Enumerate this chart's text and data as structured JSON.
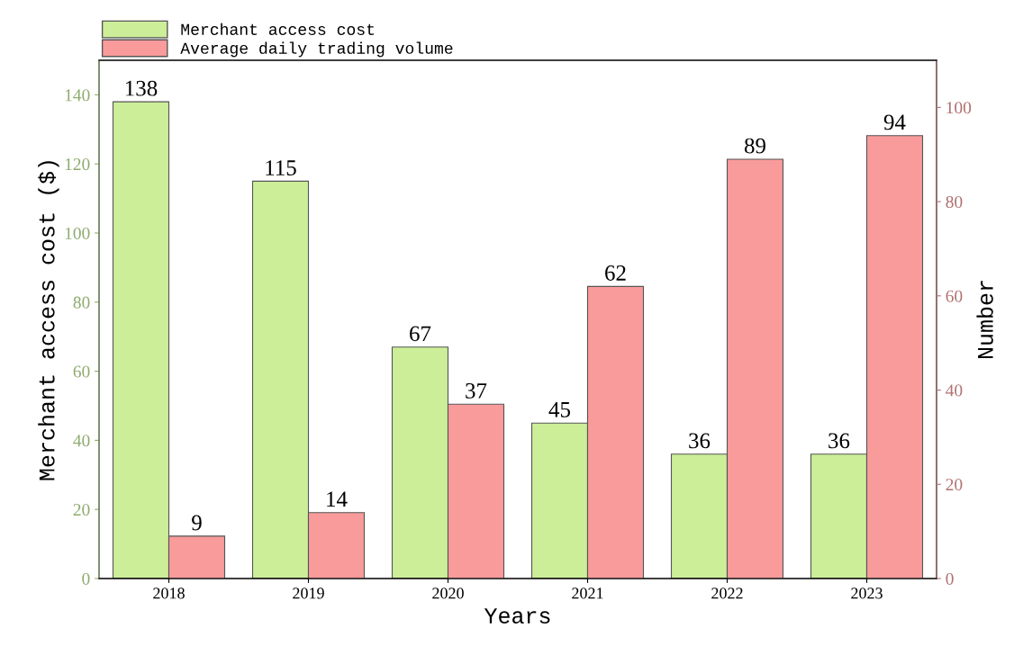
{
  "chart_data": {
    "type": "bar",
    "xlabel": "Years",
    "ylabel": "Merchant access cost ($)",
    "y2label": "Number",
    "categories": [
      "2018",
      "2019",
      "2020",
      "2021",
      "2022",
      "2023"
    ],
    "series": [
      {
        "name": "Merchant access cost",
        "color": "#ccee99",
        "values": [
          138,
          115,
          67,
          45,
          36,
          36
        ]
      },
      {
        "name": "Average daily trading volume",
        "color": "#f99b9b",
        "values": [
          9,
          14,
          37,
          62,
          89,
          94
        ],
        "axis": "y2"
      }
    ],
    "ylim": [
      0,
      150
    ],
    "yticks": [
      0,
      20,
      40,
      60,
      80,
      100,
      120,
      140
    ],
    "y2lim": [
      0,
      110
    ],
    "y2ticks": [
      0,
      20,
      40,
      60,
      80,
      100
    ],
    "data_labels": true,
    "legend": "top left",
    "grid": false
  }
}
